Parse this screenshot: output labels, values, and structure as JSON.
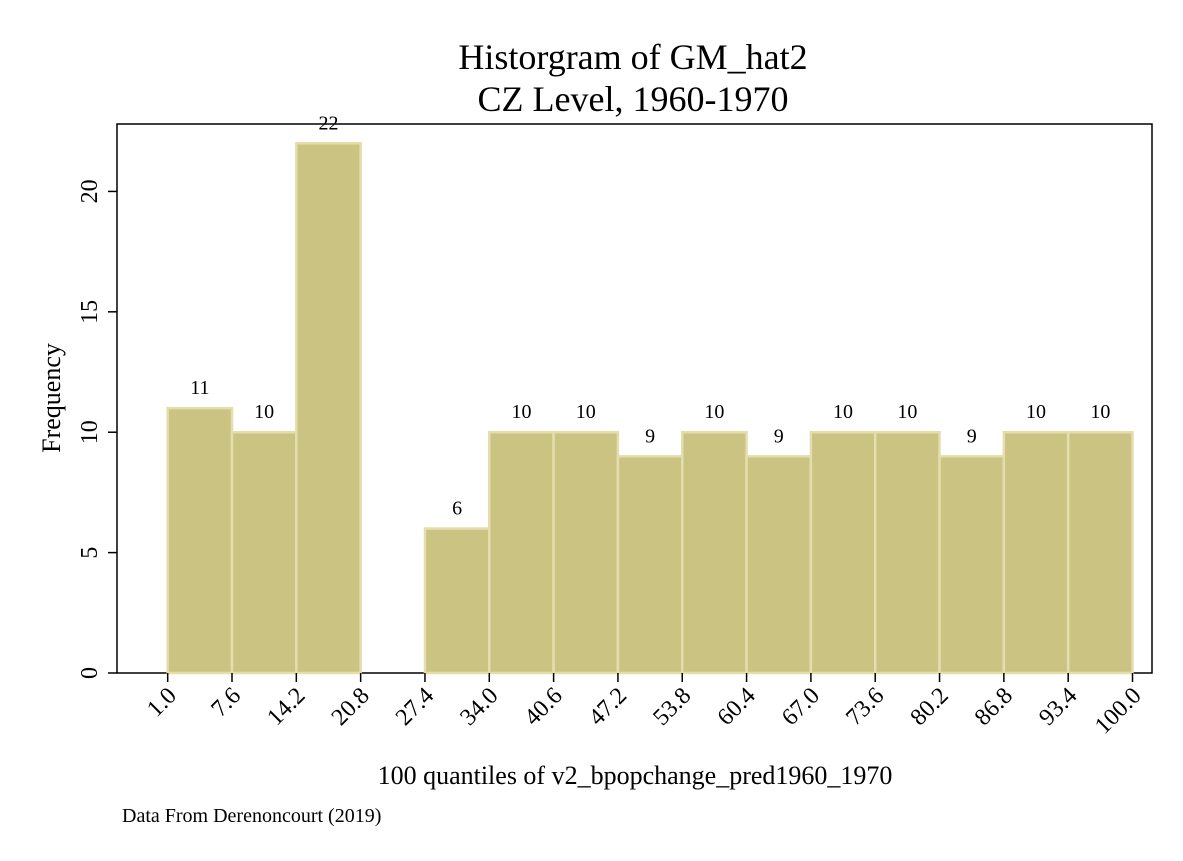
{
  "chart_data": {
    "type": "bar",
    "title": "Historgram of GM_hat2",
    "subtitle": "CZ Level, 1960-1970",
    "xlabel": "100 quantiles of v2_bpopchange_pred1960_1970",
    "ylabel": "Frequency",
    "note": "Data From Derenoncourt (2019)",
    "x_ticks": [
      "1.0",
      "7.6",
      "14.2",
      "20.8",
      "27.4",
      "34.0",
      "40.6",
      "47.2",
      "53.8",
      "60.4",
      "67.0",
      "73.6",
      "80.2",
      "86.8",
      "93.4",
      "100.0"
    ],
    "y_ticks": [
      "0",
      "5",
      "10",
      "15",
      "20"
    ],
    "bins": [
      {
        "start": 1.0,
        "end": 7.6,
        "value": 11
      },
      {
        "start": 7.6,
        "end": 14.2,
        "value": 10
      },
      {
        "start": 14.2,
        "end": 20.8,
        "value": 22
      },
      {
        "start": 20.8,
        "end": 27.4,
        "value": 0
      },
      {
        "start": 27.4,
        "end": 34.0,
        "value": 6
      },
      {
        "start": 34.0,
        "end": 40.6,
        "value": 10
      },
      {
        "start": 40.6,
        "end": 47.2,
        "value": 10
      },
      {
        "start": 47.2,
        "end": 53.8,
        "value": 9
      },
      {
        "start": 53.8,
        "end": 60.4,
        "value": 10
      },
      {
        "start": 60.4,
        "end": 67.0,
        "value": 9
      },
      {
        "start": 67.0,
        "end": 73.6,
        "value": 10
      },
      {
        "start": 73.6,
        "end": 80.2,
        "value": 10
      },
      {
        "start": 80.2,
        "end": 86.8,
        "value": 9
      },
      {
        "start": 86.8,
        "end": 93.4,
        "value": 10
      },
      {
        "start": 93.4,
        "end": 100.0,
        "value": 10
      }
    ],
    "xlim": [
      -4.2,
      102.0
    ],
    "ylim": [
      0,
      22.8
    ],
    "bar_color": "#cbc382",
    "bar_edge_color": "#e4deae",
    "grid": false,
    "legend": "none"
  }
}
